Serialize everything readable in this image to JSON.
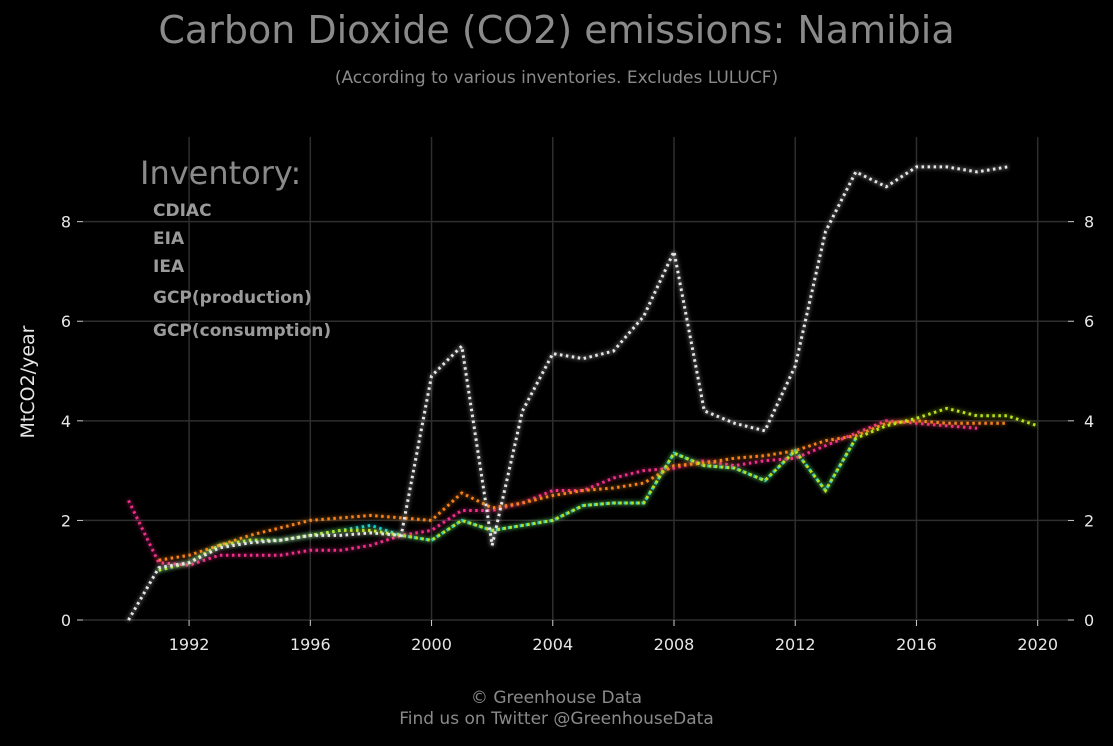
{
  "title": "Carbon Dioxide (CO2) emissions: Namibia",
  "subtitle": "(According to various inventories. Excludes LULUCF)",
  "footer": {
    "line1": "© Greenhouse Data",
    "line2": "Find us on Twitter @GreenhouseData"
  },
  "chart_data": {
    "type": "line",
    "ylabel": "MtCO2/year",
    "xlim": [
      1988.5,
      2021.0
    ],
    "ylim": [
      0,
      9.7
    ],
    "x_ticks": [
      1992,
      1996,
      2000,
      2004,
      2008,
      2012,
      2016,
      2020
    ],
    "y_ticks": [
      0,
      2,
      4,
      6,
      8
    ],
    "grid": true,
    "legend": {
      "title": "Inventory:",
      "placement": "top-left"
    },
    "series": [
      {
        "name": "CDIAC",
        "color": "#17c9d6",
        "x": [
          1991,
          1992,
          1993,
          1994,
          1995,
          1996,
          1997,
          1998,
          1999,
          2000,
          2001,
          2002,
          2003,
          2004,
          2005,
          2006,
          2007,
          2008,
          2009,
          2010,
          2011,
          2012,
          2013,
          2014
        ],
        "y": [
          1.0,
          1.15,
          1.5,
          1.6,
          1.6,
          1.7,
          1.8,
          1.9,
          1.7,
          1.6,
          2.0,
          1.8,
          1.9,
          2.0,
          2.3,
          2.35,
          2.35,
          3.35,
          3.1,
          3.05,
          2.8,
          3.4,
          2.6,
          3.65
        ]
      },
      {
        "name": "EIA",
        "color": "#f02f8a",
        "x": [
          1990,
          1991,
          1992,
          1993,
          1994,
          1995,
          1996,
          1997,
          1998,
          1999,
          2000,
          2001,
          2002,
          2003,
          2004,
          2005,
          2006,
          2007,
          2008,
          2009,
          2010,
          2011,
          2012,
          2013,
          2014,
          2015,
          2016,
          2017,
          2018
        ],
        "y": [
          2.4,
          1.15,
          1.1,
          1.3,
          1.3,
          1.3,
          1.4,
          1.4,
          1.5,
          1.7,
          1.8,
          2.2,
          2.2,
          2.35,
          2.6,
          2.6,
          2.85,
          3.0,
          3.05,
          3.2,
          3.1,
          3.2,
          3.25,
          3.5,
          3.75,
          4.0,
          3.95,
          3.9,
          3.85
        ]
      },
      {
        "name": "IEA",
        "color": "#f5821f",
        "x": [
          1991,
          1992,
          1993,
          1994,
          1995,
          1996,
          1997,
          1998,
          1999,
          2000,
          2001,
          2002,
          2003,
          2004,
          2005,
          2006,
          2007,
          2008,
          2009,
          2010,
          2011,
          2012,
          2013,
          2014,
          2015,
          2016,
          2017,
          2018,
          2019
        ],
        "y": [
          1.2,
          1.3,
          1.5,
          1.7,
          1.85,
          2.0,
          2.05,
          2.1,
          2.05,
          2.0,
          2.55,
          2.25,
          2.35,
          2.5,
          2.6,
          2.65,
          2.75,
          3.1,
          3.15,
          3.25,
          3.3,
          3.4,
          3.6,
          3.7,
          3.95,
          4.0,
          3.95,
          3.95,
          3.95
        ]
      },
      {
        "name": "GCP(production)",
        "color": "#b7e21b",
        "x": [
          1991,
          1992,
          1993,
          1994,
          1995,
          1996,
          1997,
          1998,
          1999,
          2000,
          2001,
          2002,
          2003,
          2004,
          2005,
          2006,
          2007,
          2008,
          2009,
          2010,
          2011,
          2012,
          2013,
          2014,
          2015,
          2016,
          2017,
          2018,
          2019,
          2020
        ],
        "y": [
          1.0,
          1.15,
          1.5,
          1.6,
          1.6,
          1.7,
          1.8,
          1.8,
          1.7,
          1.6,
          2.0,
          1.8,
          1.9,
          2.0,
          2.3,
          2.35,
          2.35,
          3.35,
          3.1,
          3.05,
          2.8,
          3.4,
          2.6,
          3.65,
          3.9,
          4.05,
          4.25,
          4.1,
          4.1,
          3.9
        ]
      },
      {
        "name": "GCP(consumption)",
        "color": "#e6e6e6",
        "x": [
          1990,
          1991,
          1992,
          1993,
          1994,
          1995,
          1996,
          1997,
          1998,
          1999,
          2000,
          2001,
          2002,
          2003,
          2004,
          2005,
          2006,
          2007,
          2008,
          2009,
          2010,
          2011,
          2012,
          2013,
          2014,
          2015,
          2016,
          2017,
          2018,
          2019
        ],
        "y": [
          0.0,
          1.05,
          1.15,
          1.45,
          1.55,
          1.6,
          1.7,
          1.7,
          1.75,
          1.7,
          4.9,
          5.5,
          1.5,
          4.2,
          5.35,
          5.25,
          5.4,
          6.1,
          7.4,
          4.2,
          3.95,
          3.8,
          5.1,
          7.8,
          9.0,
          8.7,
          9.1,
          9.1,
          9.0,
          9.1
        ]
      }
    ]
  }
}
